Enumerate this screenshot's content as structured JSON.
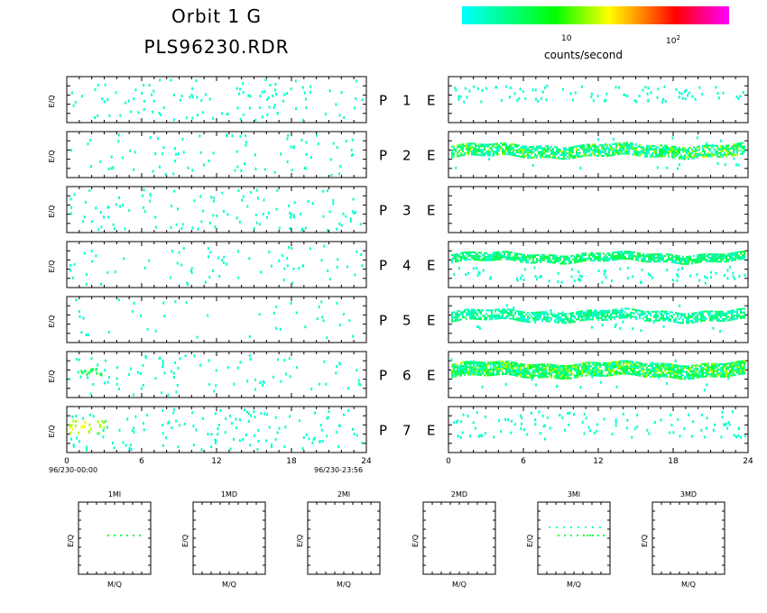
{
  "title": "Orbit 1 G",
  "subtitle": "PLS96230.RDR",
  "colorbar": {
    "label": "counts/second",
    "tick_10": "10",
    "tick_100_base": "10",
    "tick_100_exp": "2",
    "colors": [
      "#00ffff",
      "#00ff80",
      "#00ff00",
      "#80ff00",
      "#ffff00",
      "#ff8000",
      "#ff0000",
      "#ff0080",
      "#ff00ff"
    ]
  },
  "panel_rows": [
    {
      "p_label": "P",
      "num": "1",
      "e_label": "E",
      "ylabel": "E/Q"
    },
    {
      "p_label": "P",
      "num": "2",
      "e_label": "E",
      "ylabel": "E/Q"
    },
    {
      "p_label": "P",
      "num": "3",
      "e_label": "E",
      "ylabel": "E/Q"
    },
    {
      "p_label": "P",
      "num": "4",
      "e_label": "E",
      "ylabel": "E/Q"
    },
    {
      "p_label": "P",
      "num": "5",
      "e_label": "E",
      "ylabel": "E/Q"
    },
    {
      "p_label": "P",
      "num": "6",
      "e_label": "E",
      "ylabel": "E/Q"
    },
    {
      "p_label": "P",
      "num": "7",
      "e_label": "E",
      "ylabel": "E/Q"
    }
  ],
  "time_axis": {
    "ticks": [
      "0",
      "6",
      "12",
      "18",
      "24"
    ],
    "start_label": "96/230-00:00",
    "end_label": "96/230-23:56"
  },
  "chart_data": [
    {
      "type": "heatmap",
      "description_ref": "P panels (left column), E/Q vs time, sparse cyan speckle",
      "x_range": [
        0,
        24
      ],
      "rows": [
        "1",
        "2",
        "3",
        "4",
        "5",
        "6",
        "7"
      ],
      "features": {
        "6": [
          {
            "x_start": 1.0,
            "x_end": 3.0,
            "level": "green"
          }
        ],
        "7": [
          {
            "x_start": 0.0,
            "x_end": 3.0,
            "level": "yellow-green"
          }
        ]
      }
    },
    {
      "type": "heatmap",
      "description_ref": "E panels (right column), E/Q vs time",
      "x_range": [
        0,
        24
      ],
      "rows": [
        "1",
        "2",
        "3",
        "4",
        "5",
        "6",
        "7"
      ],
      "features": {
        "1": [
          {
            "band": "sparse",
            "level": "cyan"
          }
        ],
        "2": [
          {
            "band": "mid",
            "level": "green"
          }
        ],
        "3": [],
        "4": [
          {
            "band": "upper",
            "level": "green"
          },
          {
            "band": "lower",
            "level": "cyan"
          }
        ],
        "5": [
          {
            "band": "mid",
            "level": "green"
          }
        ],
        "6": [
          {
            "band": "mid",
            "level": "yellow-green"
          }
        ],
        "7": [
          {
            "band": "sparse",
            "level": "cyan"
          }
        ]
      }
    }
  ],
  "bottom_panels": [
    {
      "title": "1MI",
      "ylabel": "E/Q",
      "xlabel": "M/Q",
      "dots": "green-row"
    },
    {
      "title": "1MD",
      "ylabel": "E/Q",
      "xlabel": "M/Q",
      "dots": "none"
    },
    {
      "title": "2MI",
      "ylabel": "E/Q",
      "xlabel": "M/Q",
      "dots": "none"
    },
    {
      "title": "2MD",
      "ylabel": "E/Q",
      "xlabel": "M/Q",
      "dots": "none"
    },
    {
      "title": "3MI",
      "ylabel": "E/Q",
      "xlabel": "M/Q",
      "dots": "green-and-cyan"
    },
    {
      "title": "3MD",
      "ylabel": "E/Q",
      "xlabel": "M/Q",
      "dots": "none"
    }
  ]
}
